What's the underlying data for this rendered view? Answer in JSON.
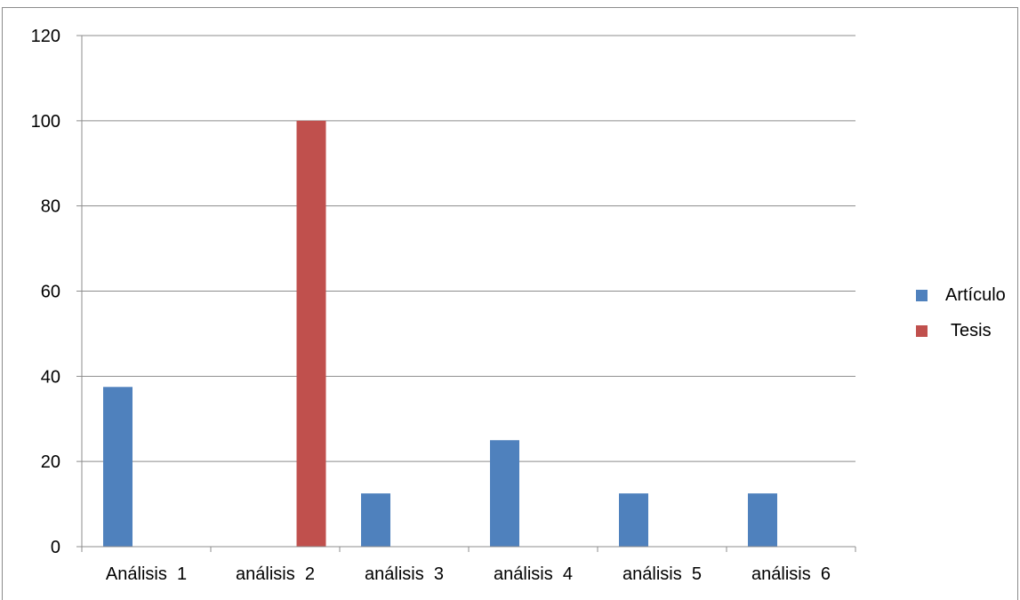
{
  "chart_data": {
    "type": "bar",
    "categories": [
      "Análisis  1",
      "análisis  2",
      "análisis  3",
      "análisis  4",
      "análisis  5",
      "análisis  6"
    ],
    "series": [
      {
        "name": "Artículo",
        "color": "#4f81bd",
        "values": [
          37.5,
          0,
          12.5,
          25,
          12.5,
          12.5
        ]
      },
      {
        "name": "Tesis",
        "color": "#c0504d",
        "values": [
          0,
          100,
          0,
          0,
          0,
          0
        ]
      }
    ],
    "ylim": [
      0,
      120
    ],
    "yticks": [
      0,
      20,
      40,
      60,
      80,
      100,
      120
    ],
    "grid": true,
    "legend_position": "right"
  }
}
